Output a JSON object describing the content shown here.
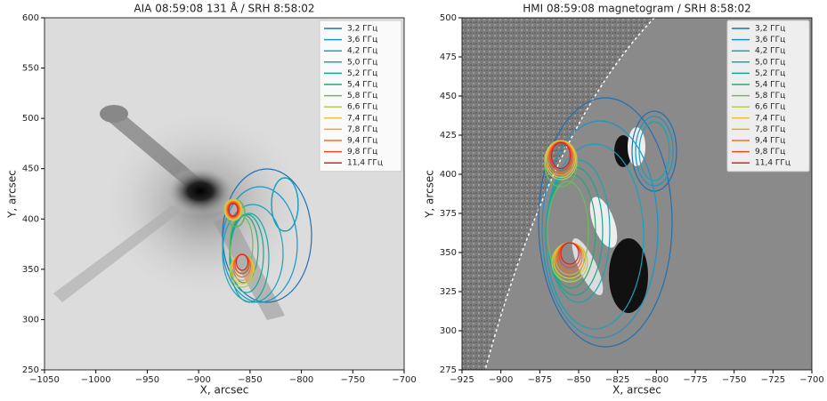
{
  "chart_data": [
    {
      "type": "contour-image",
      "title": "AIA 08:59:08 131 Å  / SRH 8:58:02",
      "xlabel": "X, arcsec",
      "ylabel": "Y, arcsec",
      "xlim": [
        -1050,
        -700
      ],
      "ylim": [
        250,
        600
      ],
      "xticks": [
        {
          "value": -1050,
          "label": "−1050"
        },
        {
          "value": -1000,
          "label": "−1000"
        },
        {
          "value": -950,
          "label": "−950"
        },
        {
          "value": -900,
          "label": "−900"
        },
        {
          "value": -850,
          "label": "−850"
        },
        {
          "value": -800,
          "label": "−800"
        },
        {
          "value": -750,
          "label": "−750"
        },
        {
          "value": -700,
          "label": "−700"
        }
      ],
      "yticks": [
        250,
        300,
        350,
        400,
        450,
        500,
        550,
        600
      ],
      "legend": "upper right",
      "series": [
        {
          "name": "3,2 ГГц",
          "color": "#1f6fb2"
        },
        {
          "name": "3,6 ГГц",
          "color": "#1b95c9"
        },
        {
          "name": "4,2 ГГц",
          "color": "#17a3bd"
        },
        {
          "name": "5,0 ГГц",
          "color": "#14a8a8"
        },
        {
          "name": "5,2 ГГц",
          "color": "#13a893"
        },
        {
          "name": "5,4 ГГц",
          "color": "#25a874"
        },
        {
          "name": "5,8 ГГц",
          "color": "#6cbd5a"
        },
        {
          "name": "6,6 ГГц",
          "color": "#b5cb55"
        },
        {
          "name": "7,4 ГГц",
          "color": "#e8c43c"
        },
        {
          "name": "7,8 ГГц",
          "color": "#f2a232"
        },
        {
          "name": "9,4 ГГц",
          "color": "#ef6e2c"
        },
        {
          "name": "9,8 ГГц",
          "color": "#e84a28"
        },
        {
          "name": "11,4 ГГц",
          "color": "#df2121"
        }
      ]
    },
    {
      "type": "contour-image",
      "title": "HMI 08:59:08 magnetogram  / SRH 8:58:02",
      "xlabel": "X, arcsec",
      "ylabel": "Y, arcsec",
      "xlim": [
        -925,
        -700
      ],
      "ylim": [
        275,
        500
      ],
      "xticks": [
        {
          "value": -925,
          "label": "−925"
        },
        {
          "value": -900,
          "label": "−900"
        },
        {
          "value": -875,
          "label": "−875"
        },
        {
          "value": -850,
          "label": "−850"
        },
        {
          "value": -825,
          "label": "−825"
        },
        {
          "value": -800,
          "label": "−800"
        },
        {
          "value": -775,
          "label": "−775"
        },
        {
          "value": -750,
          "label": "−750"
        },
        {
          "value": -725,
          "label": "−725"
        },
        {
          "value": -700,
          "label": "−700"
        }
      ],
      "yticks": [
        275,
        300,
        325,
        350,
        375,
        400,
        425,
        450,
        475,
        500
      ],
      "legend": "upper right",
      "series": [
        {
          "name": "3,2 ГГц",
          "color": "#1f6fb2"
        },
        {
          "name": "3,6 ГГц",
          "color": "#1b95c9"
        },
        {
          "name": "4,2 ГГц",
          "color": "#17a3bd"
        },
        {
          "name": "5,0 ГГц",
          "color": "#14a8a8"
        },
        {
          "name": "5,2 ГГц",
          "color": "#13a893"
        },
        {
          "name": "5,4 ГГц",
          "color": "#25a874"
        },
        {
          "name": "5,8 ГГц",
          "color": "#6cbd5a"
        },
        {
          "name": "6,6 ГГц",
          "color": "#b5cb55"
        },
        {
          "name": "7,4 ГГц",
          "color": "#e8c43c"
        },
        {
          "name": "7,8 ГГц",
          "color": "#f2a232"
        },
        {
          "name": "9,4 ГГц",
          "color": "#ef6e2c"
        },
        {
          "name": "9,8 ГГц",
          "color": "#e84a28"
        },
        {
          "name": "11,4 ГГц",
          "color": "#df2121"
        }
      ]
    }
  ]
}
